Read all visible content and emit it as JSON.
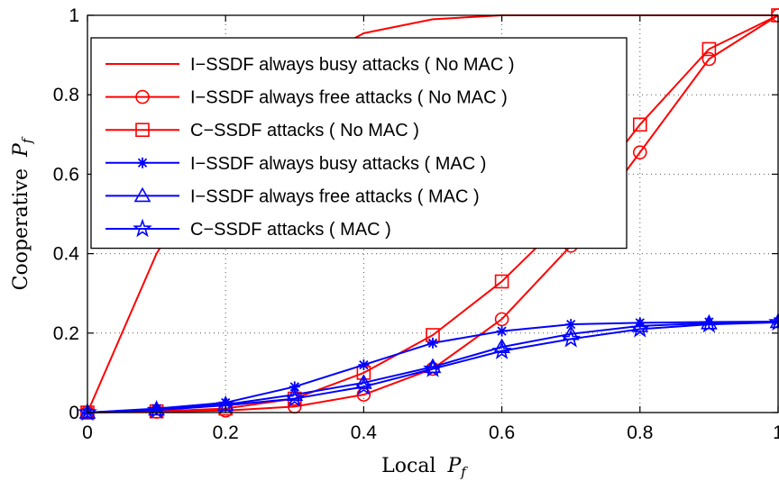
{
  "chart_data": {
    "type": "line",
    "xlabel": "Local",
    "xlabel_sub": "f",
    "ylabel": "Cooperative",
    "ylabel_sub": "f",
    "axis_symbol": "P",
    "xlim": [
      0,
      1
    ],
    "ylim": [
      0,
      1
    ],
    "x_ticks": [
      "0",
      "0.2",
      "0.4",
      "0.6",
      "0.8",
      "1"
    ],
    "y_ticks": [
      "0",
      "0.2",
      "0.4",
      "0.6",
      "0.8",
      "1"
    ],
    "grid": true,
    "legend_position": "upper-left",
    "x": [
      0,
      0.1,
      0.2,
      0.3,
      0.4,
      0.5,
      0.6,
      0.7,
      0.8,
      0.9,
      1.0
    ],
    "series": [
      {
        "name": "I−SSDF always busy attacks  ( No MAC )",
        "color": "#ff0000",
        "marker": "none",
        "values": [
          0,
          0.4,
          0.68,
          0.86,
          0.955,
          0.99,
          1.0,
          1.0,
          1.0,
          1.0,
          1.0
        ]
      },
      {
        "name": "I−SSDF always free attacks ( No MAC )",
        "color": "#ff0000",
        "marker": "circle",
        "values": [
          0,
          0.002,
          0.005,
          0.015,
          0.045,
          0.11,
          0.235,
          0.42,
          0.655,
          0.89,
          1.0
        ]
      },
      {
        "name": "C−SSDF attacks ( No MAC )",
        "color": "#ff0000",
        "marker": "square",
        "values": [
          0,
          0.003,
          0.01,
          0.035,
          0.1,
          0.195,
          0.33,
          0.5,
          0.725,
          0.915,
          1.0
        ]
      },
      {
        "name": "I−SSDF always busy attacks ( MAC )",
        "color": "#0000ff",
        "marker": "asterisk",
        "values": [
          0,
          0.01,
          0.025,
          0.065,
          0.12,
          0.175,
          0.205,
          0.222,
          0.226,
          0.228,
          0.229
        ]
      },
      {
        "name": "I−SSDF always free attacks ( MAC )",
        "color": "#0000ff",
        "marker": "triangle",
        "values": [
          0,
          0.008,
          0.02,
          0.045,
          0.075,
          0.115,
          0.165,
          0.198,
          0.218,
          0.225,
          0.228
        ]
      },
      {
        "name": "C−SSDF attacks  ( MAC )",
        "color": "#0000ff",
        "marker": "star",
        "values": [
          0,
          0.006,
          0.018,
          0.035,
          0.065,
          0.11,
          0.155,
          0.185,
          0.21,
          0.222,
          0.227
        ]
      }
    ]
  }
}
